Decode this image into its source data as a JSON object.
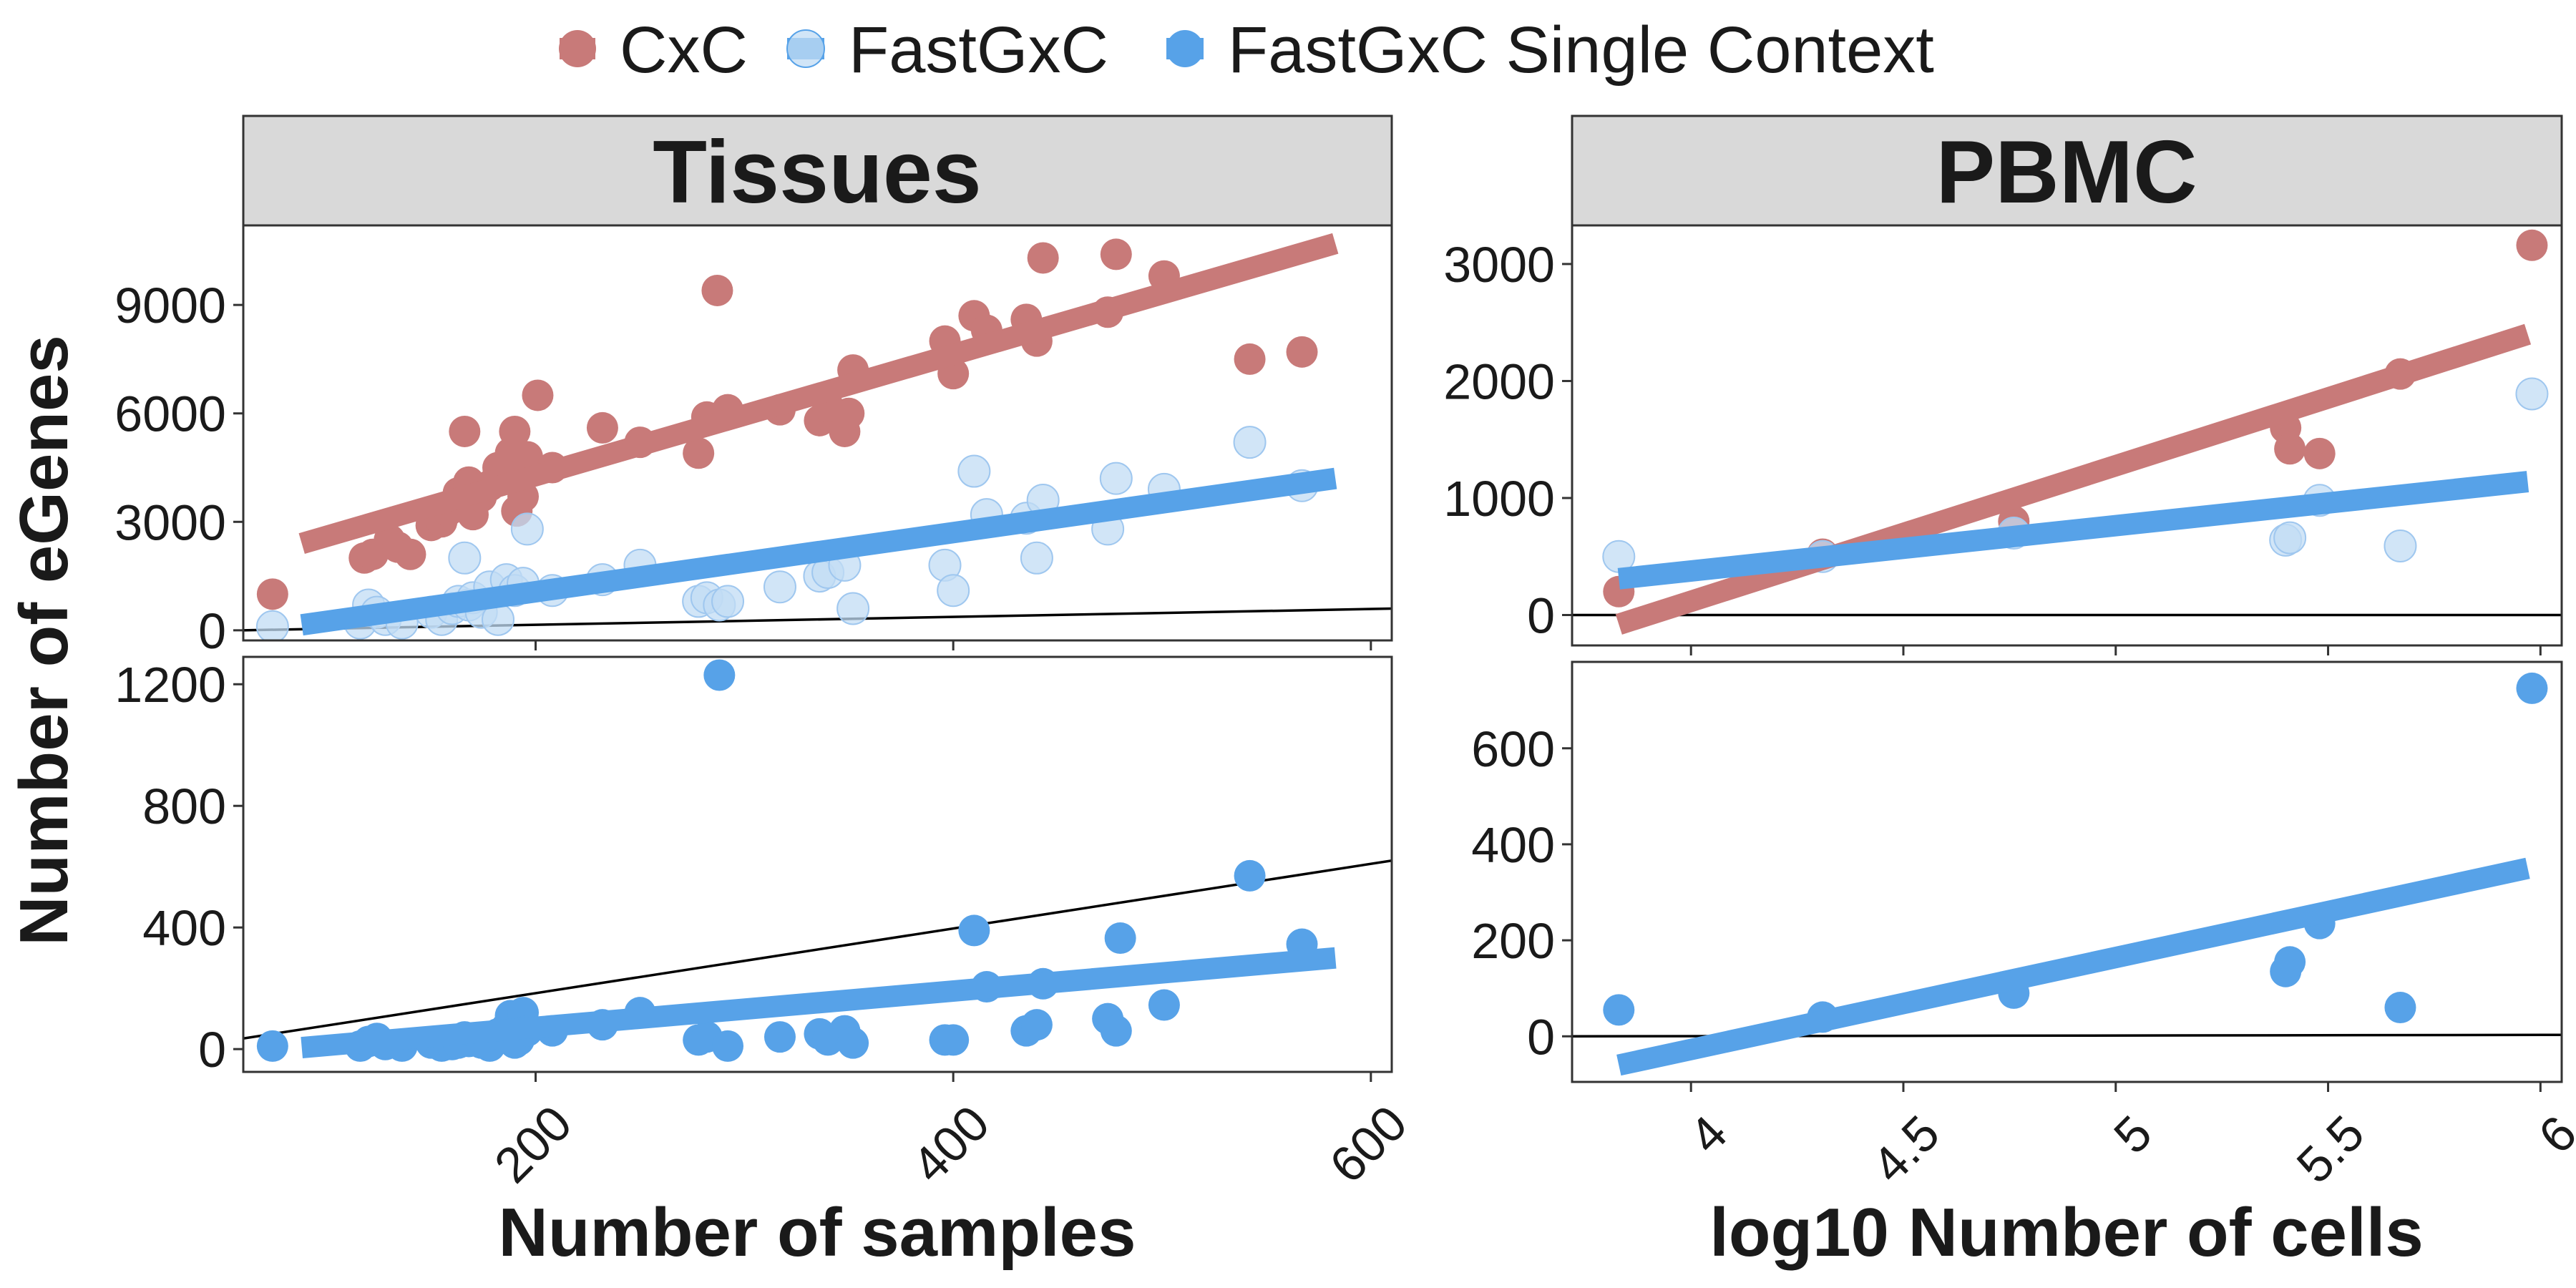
{
  "legend": {
    "items": [
      {
        "label": "CxC",
        "color": "#c87a79"
      },
      {
        "label": "FastGxC",
        "color": "#c2dcf4"
      },
      {
        "label": "FastGxC Single Context",
        "color": "#57a2e8"
      }
    ]
  },
  "axes": {
    "ylabel": "Number of eGenes",
    "left_xlabel": "Number of samples",
    "right_xlabel": "log10 Number of cells"
  },
  "chart_data": [
    {
      "id": "tissues-top",
      "type": "scatter",
      "panel": "Tissues",
      "xlim": [
        60,
        610
      ],
      "ylim": [
        -280,
        11200
      ],
      "xticks": [
        200,
        400,
        600
      ],
      "yticks": [
        0,
        3000,
        6000,
        9000
      ],
      "reference_line": {
        "x": [
          60,
          610
        ],
        "y": [
          0,
          600
        ]
      },
      "series": [
        {
          "name": "CxC",
          "color": "#c87a79",
          "fit": {
            "x": [
              88,
              583
            ],
            "y": [
              2400,
              10700
            ]
          },
          "points": [
            [
              74,
              1000
            ],
            [
              118,
              2000
            ],
            [
              122,
              2100
            ],
            [
              130,
              2500
            ],
            [
              134,
              2300
            ],
            [
              140,
              2100
            ],
            [
              150,
              2900
            ],
            [
              155,
              3000
            ],
            [
              158,
              3300
            ],
            [
              163,
              3800
            ],
            [
              166,
              5500
            ],
            [
              168,
              4100
            ],
            [
              170,
              3200
            ],
            [
              174,
              3700
            ],
            [
              178,
              4000
            ],
            [
              182,
              4500
            ],
            [
              186,
              4400
            ],
            [
              188,
              4900
            ],
            [
              190,
              5500
            ],
            [
              191,
              3300
            ],
            [
              194,
              3700
            ],
            [
              196,
              4800
            ],
            [
              201,
              6500
            ],
            [
              208,
              4500
            ],
            [
              232,
              5600
            ],
            [
              250,
              5200
            ],
            [
              278,
              4900
            ],
            [
              282,
              5900
            ],
            [
              287,
              9400
            ],
            [
              292,
              6100
            ],
            [
              317,
              6100
            ],
            [
              336,
              5800
            ],
            [
              340,
              6200
            ],
            [
              348,
              5500
            ],
            [
              350,
              6000
            ],
            [
              352,
              7200
            ],
            [
              396,
              8000
            ],
            [
              400,
              7100
            ],
            [
              410,
              8700
            ],
            [
              416,
              8300
            ],
            [
              435,
              8600
            ],
            [
              440,
              8000
            ],
            [
              443,
              10300
            ],
            [
              474,
              8800
            ],
            [
              478,
              10400
            ],
            [
              501,
              9800
            ],
            [
              542,
              7500
            ],
            [
              567,
              7700
            ]
          ]
        },
        {
          "name": "FastGxC",
          "color": "#c2dcf4",
          "fit": {
            "x": [
              88,
              583
            ],
            "y": [
              150,
              4200
            ]
          },
          "points": [
            [
              74,
              100
            ],
            [
              116,
              200
            ],
            [
              120,
              700
            ],
            [
              124,
              500
            ],
            [
              128,
              300
            ],
            [
              136,
              200
            ],
            [
              150,
              500
            ],
            [
              155,
              300
            ],
            [
              160,
              600
            ],
            [
              163,
              800
            ],
            [
              166,
              2000
            ],
            [
              168,
              700
            ],
            [
              170,
              900
            ],
            [
              174,
              500
            ],
            [
              178,
              1200
            ],
            [
              182,
              300
            ],
            [
              186,
              1400
            ],
            [
              190,
              1100
            ],
            [
              194,
              1300
            ],
            [
              196,
              2800
            ],
            [
              208,
              1100
            ],
            [
              232,
              1400
            ],
            [
              250,
              1800
            ],
            [
              278,
              800
            ],
            [
              282,
              900
            ],
            [
              288,
              700
            ],
            [
              292,
              800
            ],
            [
              317,
              1200
            ],
            [
              336,
              1500
            ],
            [
              340,
              1600
            ],
            [
              348,
              1800
            ],
            [
              352,
              600
            ],
            [
              396,
              1800
            ],
            [
              400,
              1100
            ],
            [
              410,
              4400
            ],
            [
              416,
              3200
            ],
            [
              435,
              3100
            ],
            [
              440,
              2000
            ],
            [
              443,
              3600
            ],
            [
              474,
              2800
            ],
            [
              478,
              4200
            ],
            [
              501,
              3900
            ],
            [
              542,
              5200
            ],
            [
              567,
              4000
            ]
          ]
        }
      ]
    },
    {
      "id": "tissues-bottom",
      "type": "scatter",
      "panel": "Tissues",
      "xlim": [
        60,
        610
      ],
      "ylim": [
        -75,
        1290
      ],
      "xticks": [
        200,
        400,
        600
      ],
      "yticks": [
        0,
        400,
        800,
        1200
      ],
      "reference_line": {
        "x": [
          60,
          610
        ],
        "y": [
          35,
          620
        ]
      },
      "series": [
        {
          "name": "FastGxC Single Context",
          "color": "#57a2e8",
          "fit": {
            "x": [
              88,
              583
            ],
            "y": [
              5,
              300
            ]
          },
          "points": [
            [
              74,
              10
            ],
            [
              116,
              10
            ],
            [
              120,
              25
            ],
            [
              124,
              35
            ],
            [
              128,
              15
            ],
            [
              136,
              10
            ],
            [
              150,
              20
            ],
            [
              155,
              10
            ],
            [
              160,
              15
            ],
            [
              163,
              20
            ],
            [
              166,
              40
            ],
            [
              168,
              25
            ],
            [
              174,
              20
            ],
            [
              178,
              10
            ],
            [
              182,
              50
            ],
            [
              186,
              70
            ],
            [
              188,
              110
            ],
            [
              190,
              20
            ],
            [
              192,
              30
            ],
            [
              194,
              120
            ],
            [
              196,
              60
            ],
            [
              208,
              60
            ],
            [
              232,
              80
            ],
            [
              250,
              120
            ],
            [
              278,
              30
            ],
            [
              282,
              40
            ],
            [
              288,
              1230
            ],
            [
              292,
              10
            ],
            [
              317,
              40
            ],
            [
              336,
              50
            ],
            [
              340,
              30
            ],
            [
              348,
              60
            ],
            [
              352,
              20
            ],
            [
              396,
              30
            ],
            [
              400,
              30
            ],
            [
              410,
              390
            ],
            [
              416,
              205
            ],
            [
              435,
              60
            ],
            [
              440,
              80
            ],
            [
              443,
              215
            ],
            [
              474,
              100
            ],
            [
              478,
              60
            ],
            [
              480,
              365
            ],
            [
              501,
              145
            ],
            [
              542,
              570
            ],
            [
              567,
              345
            ]
          ]
        }
      ]
    },
    {
      "id": "pbmc-top",
      "type": "scatter",
      "panel": "PBMC",
      "xlim": [
        3.72,
        6.05
      ],
      "ylim": [
        -260,
        3330
      ],
      "xticks": [
        4.0,
        4.5,
        5.0,
        5.5,
        6.0
      ],
      "yticks": [
        0,
        1000,
        2000,
        3000
      ],
      "reference_line": {
        "x": [
          3.72,
          6.05
        ],
        "y": [
          0,
          0
        ]
      },
      "series": [
        {
          "name": "CxC",
          "color": "#c87a79",
          "fit": {
            "x": [
              3.83,
              5.97
            ],
            "y": [
              -80,
              2400
            ]
          },
          "points": [
            [
              3.83,
              200
            ],
            [
              4.31,
              520
            ],
            [
              4.76,
              800
            ],
            [
              5.4,
              1600
            ],
            [
              5.41,
              1420
            ],
            [
              5.48,
              1380
            ],
            [
              5.67,
              2060
            ],
            [
              5.98,
              3160
            ]
          ]
        },
        {
          "name": "FastGxC",
          "color": "#c2dcf4",
          "fit": {
            "x": [
              3.83,
              5.97
            ],
            "y": [
              310,
              1140
            ]
          },
          "points": [
            [
              3.83,
              500
            ],
            [
              4.31,
              500
            ],
            [
              4.76,
              700
            ],
            [
              5.4,
              640
            ],
            [
              5.41,
              660
            ],
            [
              5.48,
              980
            ],
            [
              5.67,
              590
            ],
            [
              5.98,
              1890
            ]
          ]
        }
      ]
    },
    {
      "id": "pbmc-bottom",
      "type": "scatter",
      "panel": "PBMC",
      "xlim": [
        3.72,
        6.05
      ],
      "ylim": [
        -95,
        780
      ],
      "xticks": [
        4.0,
        4.5,
        5.0,
        5.5,
        6.0
      ],
      "yticks": [
        0,
        200,
        400,
        600
      ],
      "reference_line": {
        "x": [
          3.72,
          6.05
        ],
        "y": [
          0,
          3
        ]
      },
      "series": [
        {
          "name": "FastGxC Single Context",
          "color": "#57a2e8",
          "fit": {
            "x": [
              3.83,
              5.97
            ],
            "y": [
              -60,
              350
            ]
          },
          "points": [
            [
              3.83,
              55
            ],
            [
              4.31,
              40
            ],
            [
              4.76,
              90
            ],
            [
              5.4,
              135
            ],
            [
              5.41,
              155
            ],
            [
              5.48,
              235
            ],
            [
              5.67,
              60
            ],
            [
              5.98,
              725
            ]
          ]
        }
      ]
    }
  ]
}
